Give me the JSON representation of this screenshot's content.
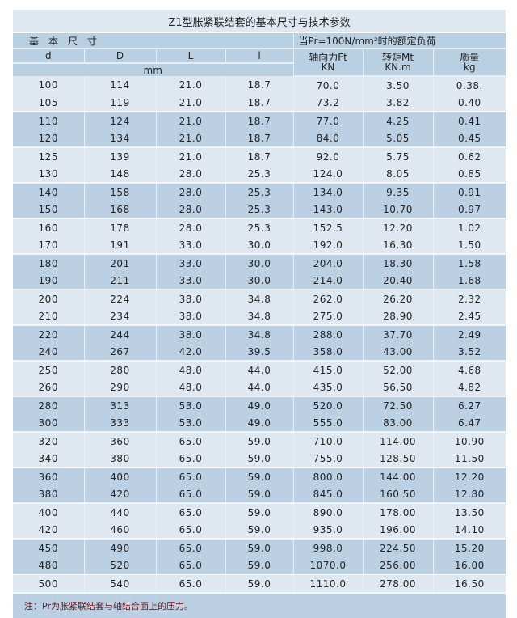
{
  "title": "Z1型胀紧联结套的基本尺寸与技术参数",
  "header": {
    "basic_dims": "基本尺寸",
    "rated_load": "当Pr=100N/mm²时的额定负荷",
    "d": "d",
    "D": "D",
    "L": "L",
    "l": "l",
    "unit_mm": "mm",
    "ft": "轴向力Ft",
    "ft_unit": "KN",
    "mt": "转矩Mt",
    "mt_unit": "KN.m",
    "mass": "质量",
    "mass_unit": "kg"
  },
  "rows": [
    [
      "100",
      "114",
      "21.0",
      "18.7",
      "70.0",
      "3.50",
      "0.38."
    ],
    [
      "105",
      "119",
      "21.0",
      "18.7",
      "73.2",
      "3.82",
      "0.40"
    ],
    [
      "110",
      "124",
      "21.0",
      "18.7",
      "77.0",
      "4.25",
      "0.41"
    ],
    [
      "120",
      "134",
      "21.0",
      "18.7",
      "84.0",
      "5.05",
      "0.45"
    ],
    [
      "125",
      "139",
      "21.0",
      "18.7",
      "92.0",
      "5.75",
      "0.62"
    ],
    [
      "130",
      "148",
      "28.0",
      "25.3",
      "124.0",
      "8.05",
      "0.85"
    ],
    [
      "140",
      "158",
      "28.0",
      "25.3",
      "134.0",
      "9.35",
      "0.91"
    ],
    [
      "150",
      "168",
      "28.0",
      "25.3",
      "143.0",
      "10.70",
      "0.97"
    ],
    [
      "160",
      "178",
      "28.0",
      "25.3",
      "152.5",
      "12.20",
      "1.02"
    ],
    [
      "170",
      "191",
      "33.0",
      "30.0",
      "192.0",
      "16.30",
      "1.50"
    ],
    [
      "180",
      "201",
      "33.0",
      "30.0",
      "204.0",
      "18.30",
      "1.58"
    ],
    [
      "190",
      "211",
      "33.0",
      "30.0",
      "214.0",
      "20.40",
      "1.68"
    ],
    [
      "200",
      "224",
      "38.0",
      "34.8",
      "262.0",
      "26.20",
      "2.32"
    ],
    [
      "210",
      "234",
      "38.0",
      "34.8",
      "275.0",
      "28.90",
      "2.45"
    ],
    [
      "220",
      "244",
      "38.0",
      "34.8",
      "288.0",
      "37.70",
      "2.49"
    ],
    [
      "240",
      "267",
      "42.0",
      "39.5",
      "358.0",
      "43.00",
      "3.52"
    ],
    [
      "250",
      "280",
      "48.0",
      "44.0",
      "415.0",
      "52.00",
      "4.68"
    ],
    [
      "260",
      "290",
      "48.0",
      "44.0",
      "435.0",
      "56.50",
      "4.82"
    ],
    [
      "280",
      "313",
      "53.0",
      "49.0",
      "520.0",
      "72.50",
      "6.27"
    ],
    [
      "300",
      "333",
      "53.0",
      "49.0",
      "555.0",
      "83.00",
      "6.47"
    ],
    [
      "320",
      "360",
      "65.0",
      "59.0",
      "710.0",
      "114.00",
      "10.90"
    ],
    [
      "340",
      "380",
      "65.0",
      "59.0",
      "755.0",
      "128.50",
      "11.50"
    ],
    [
      "360",
      "400",
      "65.0",
      "59.0",
      "800.0",
      "144.00",
      "12.20"
    ],
    [
      "380",
      "420",
      "65.0",
      "59.0",
      "845.0",
      "160.50",
      "12.80"
    ],
    [
      "400",
      "440",
      "65.0",
      "59.0",
      "890.0",
      "178.00",
      "13.50"
    ],
    [
      "420",
      "460",
      "65.0",
      "59.0",
      "935.0",
      "196.00",
      "14.10"
    ],
    [
      "450",
      "490",
      "65.0",
      "59.0",
      "998.0",
      "224.50",
      "15.20"
    ],
    [
      "480",
      "520",
      "65.0",
      "59.0",
      "1070.0",
      "256.00",
      "16.00"
    ],
    [
      "500",
      "540",
      "65.0",
      "59.0",
      "1110.0",
      "278.00",
      "16.50"
    ]
  ],
  "note": "注：Pr为胀紧联结套与轴结合面上的压力。",
  "colors": {
    "light": "#dfe8f1",
    "dark": "#bcd0e3",
    "note_text": "#6a1a1a"
  }
}
